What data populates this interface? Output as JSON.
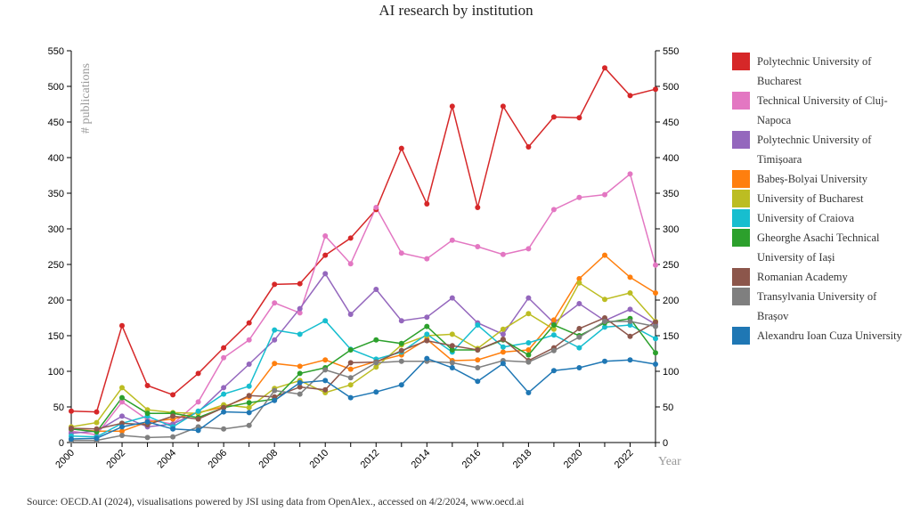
{
  "title": "AI research by institution",
  "source": "Source: OECD.AI (2024), visualisations powered by JSI using data from OpenAlex., accessed on 4/2/2024, www.oecd.ai",
  "chart_data": {
    "type": "line",
    "title": "AI research by institution",
    "xlabel": "Year",
    "ylabel": "# publications",
    "xlim": [
      2000,
      2023
    ],
    "ylim": [
      0,
      550
    ],
    "x_ticks": [
      "2000",
      "2002",
      "2004",
      "2006",
      "2008",
      "2010",
      "2012",
      "2014",
      "2016",
      "2018",
      "2020",
      "2022"
    ],
    "y_ticks": [
      "0",
      "50",
      "100",
      "150",
      "200",
      "250",
      "300",
      "350",
      "400",
      "450",
      "500",
      "550"
    ],
    "legend_position": "right",
    "grid": false,
    "x": [
      2000,
      2001,
      2002,
      2003,
      2004,
      2005,
      2006,
      2007,
      2008,
      2009,
      2010,
      2011,
      2012,
      2013,
      2014,
      2015,
      2016,
      2017,
      2018,
      2019,
      2020,
      2021,
      2022,
      2023
    ],
    "series": [
      {
        "name": "Polytechnic University of Bucharest",
        "color": "#d62728",
        "values": [
          44,
          43,
          164,
          80,
          67,
          97,
          133,
          168,
          222,
          223,
          263,
          287,
          327,
          413,
          335,
          472,
          330,
          472,
          415,
          457,
          456,
          526,
          487,
          496
        ]
      },
      {
        "name": "Technical University of Cluj-Napoca",
        "color": "#e377c2",
        "values": [
          16,
          11,
          57,
          32,
          26,
          57,
          119,
          144,
          196,
          182,
          290,
          251,
          330,
          266,
          258,
          284,
          275,
          264,
          272,
          327,
          344,
          348,
          377,
          249
        ]
      },
      {
        "name": "Polytechnic University of Timișoara",
        "color": "#9467bd",
        "values": [
          13,
          16,
          37,
          22,
          26,
          43,
          77,
          110,
          144,
          188,
          237,
          180,
          215,
          171,
          176,
          203,
          168,
          152,
          203,
          168,
          195,
          171,
          187,
          166
        ]
      },
      {
        "name": "Babeș-Bolyai University",
        "color": "#ff7f0e",
        "values": [
          19,
          16,
          16,
          29,
          33,
          42,
          50,
          64,
          111,
          107,
          116,
          103,
          114,
          123,
          145,
          115,
          116,
          127,
          130,
          172,
          230,
          263,
          232,
          210
        ]
      },
      {
        "name": "University of Bucharest",
        "color": "#bcbd22",
        "values": [
          22,
          28,
          77,
          46,
          42,
          41,
          53,
          49,
          76,
          87,
          70,
          81,
          106,
          137,
          150,
          152,
          132,
          159,
          181,
          159,
          224,
          201,
          210,
          170
        ]
      },
      {
        "name": "University of Craiova",
        "color": "#17becf",
        "values": [
          9,
          8,
          27,
          37,
          22,
          44,
          68,
          79,
          158,
          152,
          171,
          131,
          117,
          127,
          152,
          127,
          165,
          134,
          140,
          151,
          133,
          162,
          165,
          146
        ]
      },
      {
        "name": "Gheorghe Asachi Technical University of Iași",
        "color": "#2ca02c",
        "values": [
          19,
          15,
          63,
          41,
          41,
          35,
          49,
          56,
          61,
          97,
          105,
          130,
          144,
          139,
          163,
          130,
          130,
          144,
          123,
          165,
          150,
          168,
          174,
          126
        ]
      },
      {
        "name": "Romanian Academy",
        "color": "#8c564b",
        "values": [
          20,
          19,
          27,
          25,
          37,
          33,
          49,
          66,
          64,
          78,
          74,
          112,
          113,
          129,
          143,
          136,
          130,
          145,
          115,
          133,
          160,
          175,
          149,
          169
        ]
      },
      {
        "name": "Transylvania University of Brașov",
        "color": "#7f7f7f",
        "values": [
          3,
          3,
          10,
          7,
          8,
          22,
          19,
          24,
          73,
          68,
          102,
          91,
          112,
          114,
          114,
          112,
          105,
          115,
          113,
          129,
          148,
          170,
          170,
          163
        ]
      },
      {
        "name": "Alexandru Ioan Cuza University",
        "color": "#1f77b4",
        "values": [
          5,
          6,
          22,
          29,
          19,
          17,
          43,
          42,
          59,
          84,
          87,
          63,
          71,
          81,
          118,
          105,
          86,
          111,
          70,
          101,
          105,
          114,
          116,
          110
        ]
      }
    ]
  }
}
